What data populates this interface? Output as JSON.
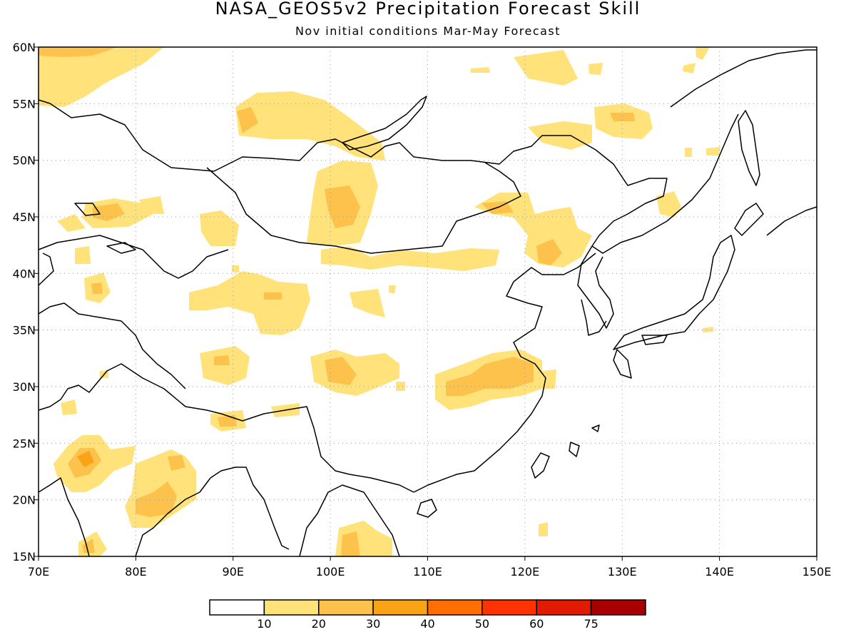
{
  "title": "NASA_GEOS5v2 Precipitation Forecast Skill",
  "subtitle": "Nov initial conditions   Mar-May Forecast",
  "chart_data": {
    "type": "heatmap",
    "x_range": [
      70,
      150
    ],
    "y_range": [
      15,
      60
    ],
    "x_ticks": [
      "70E",
      "80E",
      "90E",
      "100E",
      "110E",
      "120E",
      "130E",
      "140E",
      "150E"
    ],
    "y_ticks": [
      "15N",
      "20N",
      "25N",
      "30N",
      "35N",
      "40N",
      "45N",
      "50N",
      "55N",
      "60N"
    ],
    "grid": "dotted",
    "colorbar": {
      "labels": [
        "10",
        "20",
        "30",
        "40",
        "50",
        "60",
        "75"
      ],
      "colors": [
        "#ffffff",
        "#ffe27a",
        "#fcc24c",
        "#f9a317",
        "#ff6f00",
        "#ff3300",
        "#e01b00",
        "#a80000"
      ]
    },
    "regions": [
      {
        "lon": [
          70,
          77
        ],
        "lat": [
          56.5,
          60
        ],
        "level": 1
      },
      {
        "lon": [
          94,
          104
        ],
        "lat": [
          47,
          53.5
        ],
        "level": 1
      },
      {
        "lon": [
          97,
          104
        ],
        "lat": [
          42,
          50
        ],
        "level": 1
      },
      {
        "lon": [
          99.5,
          103
        ],
        "lat": [
          44,
          47.5
        ],
        "level": 2
      },
      {
        "lon": [
          113,
          124
        ],
        "lat": [
          41,
          46
        ],
        "level": 1
      },
      {
        "lon": [
          121,
          123
        ],
        "lat": [
          41.5,
          43
        ],
        "level": 2
      },
      {
        "lon": [
          111,
          121.5
        ],
        "lat": [
          28,
          33
        ],
        "level": 1
      },
      {
        "lon": [
          117,
          121
        ],
        "lat": [
          30.5,
          32.5
        ],
        "level": 2
      },
      {
        "lon": [
          99,
          103
        ],
        "lat": [
          29,
          31.5
        ],
        "level": 2
      },
      {
        "lon": [
          72,
          77.5
        ],
        "lat": [
          20.5,
          25
        ],
        "level": 2
      },
      {
        "lon": [
          80,
          84
        ],
        "lat": [
          18.5,
          21.5
        ],
        "level": 2
      },
      {
        "lon": [
          100,
          104
        ],
        "lat": [
          15,
          17.5
        ],
        "level": 2
      },
      {
        "lon": [
          129.5,
          134
        ],
        "lat": [
          51.5,
          54.5
        ],
        "level": 1
      },
      {
        "lon": [
          91,
          94
        ],
        "lat": [
          52,
          54.5
        ],
        "level": 2
      }
    ]
  }
}
